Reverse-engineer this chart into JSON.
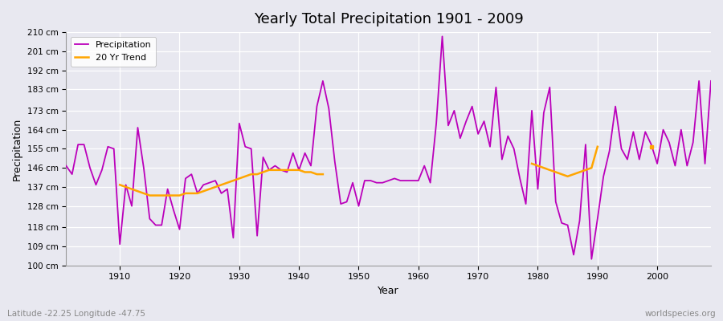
{
  "title": "Yearly Total Precipitation 1901 - 2009",
  "xlabel": "Year",
  "ylabel": "Precipitation",
  "subtitle": "Latitude -22.25 Longitude -47.75",
  "watermark": "worldspecies.org",
  "ylim": [
    100,
    210
  ],
  "yticks": [
    100,
    109,
    118,
    128,
    137,
    146,
    155,
    164,
    173,
    183,
    192,
    201,
    210
  ],
  "ytick_labels": [
    "100 cm",
    "109 cm",
    "118 cm",
    "128 cm",
    "137 cm",
    "146 cm",
    "155 cm",
    "164 cm",
    "173 cm",
    "183 cm",
    "192 cm",
    "201 cm",
    "210 cm"
  ],
  "precip_color": "#bb00bb",
  "trend_color": "#ffa500",
  "bg_color": "#e8e8f0",
  "years": [
    1901,
    1902,
    1903,
    1904,
    1905,
    1906,
    1907,
    1908,
    1909,
    1910,
    1911,
    1912,
    1913,
    1914,
    1915,
    1916,
    1917,
    1918,
    1919,
    1920,
    1921,
    1922,
    1923,
    1924,
    1925,
    1926,
    1927,
    1928,
    1929,
    1930,
    1931,
    1932,
    1933,
    1934,
    1935,
    1936,
    1937,
    1938,
    1939,
    1940,
    1941,
    1942,
    1943,
    1944,
    1945,
    1946,
    1947,
    1948,
    1949,
    1950,
    1951,
    1952,
    1953,
    1954,
    1955,
    1956,
    1957,
    1958,
    1959,
    1960,
    1961,
    1962,
    1963,
    1964,
    1965,
    1966,
    1967,
    1968,
    1969,
    1970,
    1971,
    1972,
    1973,
    1974,
    1975,
    1976,
    1977,
    1978,
    1979,
    1980,
    1981,
    1982,
    1983,
    1984,
    1985,
    1986,
    1987,
    1988,
    1989,
    1990,
    1991,
    1992,
    1993,
    1994,
    1995,
    1996,
    1997,
    1998,
    1999,
    2000,
    2001,
    2002,
    2003,
    2004,
    2005,
    2006,
    2007,
    2008,
    2009
  ],
  "precipitation": [
    147,
    143,
    157,
    157,
    146,
    138,
    145,
    156,
    155,
    110,
    138,
    128,
    165,
    146,
    122,
    119,
    119,
    136,
    126,
    117,
    141,
    143,
    134,
    138,
    139,
    140,
    134,
    136,
    113,
    167,
    156,
    155,
    114,
    151,
    145,
    147,
    145,
    144,
    153,
    145,
    153,
    147,
    175,
    187,
    174,
    149,
    129,
    130,
    139,
    128,
    140,
    140,
    139,
    139,
    140,
    141,
    140,
    140,
    140,
    140,
    147,
    139,
    167,
    208,
    166,
    173,
    160,
    168,
    175,
    162,
    168,
    156,
    184,
    150,
    161,
    155,
    141,
    129,
    173,
    136,
    172,
    184,
    130,
    120,
    119,
    105,
    121,
    157,
    103,
    122,
    142,
    154,
    175,
    155,
    150,
    163,
    150,
    163,
    157,
    148,
    164,
    158,
    147,
    164,
    147,
    158,
    187,
    148,
    187
  ],
  "trend_seg1_years": [
    1910,
    1911,
    1912,
    1913,
    1914,
    1915,
    1916,
    1917,
    1918,
    1919,
    1920,
    1921,
    1922,
    1923,
    1924,
    1925,
    1926,
    1927,
    1928,
    1929,
    1930,
    1931,
    1932,
    1933,
    1934,
    1935,
    1936,
    1937,
    1938,
    1939,
    1940,
    1941,
    1942,
    1943,
    1944
  ],
  "trend_seg1_values": [
    138,
    137,
    136,
    135,
    134,
    133,
    133,
    133,
    133,
    133,
    133,
    134,
    134,
    134,
    135,
    136,
    137,
    138,
    139,
    140,
    141,
    142,
    143,
    143,
    144,
    145,
    145,
    145,
    145,
    145,
    145,
    144,
    144,
    143,
    143
  ],
  "trend_seg2_years": [
    1979,
    1980,
    1981,
    1982,
    1983,
    1984,
    1985,
    1986,
    1987,
    1988,
    1989,
    1990
  ],
  "trend_seg2_values": [
    148,
    147,
    146,
    145,
    144,
    143,
    142,
    143,
    144,
    145,
    146,
    156
  ],
  "trend_dot_year": [
    1999
  ],
  "trend_dot_value": [
    156
  ]
}
